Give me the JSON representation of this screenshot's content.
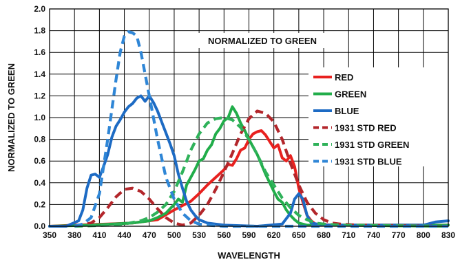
{
  "chart_data": {
    "type": "line",
    "title": "",
    "annotation": "NORMALIZED TO GREEN",
    "xlabel": "WAVELENGTH",
    "ylabel": "NORMALIZED TO GREEN",
    "xlim": [
      350,
      830
    ],
    "ylim": [
      0,
      2
    ],
    "x_ticks": [
      350,
      380,
      410,
      440,
      470,
      500,
      530,
      560,
      590,
      620,
      650,
      680,
      710,
      740,
      770,
      800,
      830
    ],
    "x_tick_labels": [
      "350",
      "380",
      "410",
      "440",
      "470",
      "500",
      "530",
      "560",
      "590",
      "620",
      "650",
      "680",
      "710",
      "740",
      "770",
      "800",
      "830"
    ],
    "y_ticks": [
      0,
      0.2,
      0.4,
      0.6,
      0.8,
      1.0,
      1.2,
      1.4,
      1.6,
      1.8,
      2.0
    ],
    "y_tick_labels": [
      "0.0",
      "0.2",
      "0.4",
      "0.6",
      "0.8",
      "1.0",
      "1.2",
      "1.4",
      "1.6",
      "1.8",
      "2.0"
    ],
    "grid": true,
    "legend_position": "right",
    "series": [
      {
        "name": "RED",
        "color": "#e8211f",
        "style": "solid",
        "points": [
          [
            350,
            0
          ],
          [
            380,
            0.01
          ],
          [
            420,
            0.02
          ],
          [
            450,
            0.03
          ],
          [
            480,
            0.06
          ],
          [
            500,
            0.15
          ],
          [
            510,
            0.19
          ],
          [
            520,
            0.23
          ],
          [
            530,
            0.3
          ],
          [
            540,
            0.38
          ],
          [
            550,
            0.45
          ],
          [
            560,
            0.52
          ],
          [
            565,
            0.57
          ],
          [
            570,
            0.56
          ],
          [
            575,
            0.62
          ],
          [
            580,
            0.7
          ],
          [
            585,
            0.72
          ],
          [
            590,
            0.8
          ],
          [
            595,
            0.85
          ],
          [
            600,
            0.87
          ],
          [
            605,
            0.88
          ],
          [
            610,
            0.84
          ],
          [
            615,
            0.78
          ],
          [
            620,
            0.72
          ],
          [
            625,
            0.75
          ],
          [
            630,
            0.63
          ],
          [
            635,
            0.6
          ],
          [
            640,
            0.65
          ],
          [
            645,
            0.55
          ],
          [
            650,
            0.35
          ],
          [
            655,
            0.22
          ],
          [
            660,
            0.1
          ],
          [
            665,
            0.05
          ],
          [
            670,
            0.02
          ],
          [
            690,
            0.01
          ],
          [
            830,
            0.01
          ]
        ]
      },
      {
        "name": "GREEN",
        "color": "#21ad4a",
        "style": "solid",
        "points": [
          [
            350,
            0
          ],
          [
            400,
            0.01
          ],
          [
            450,
            0.03
          ],
          [
            470,
            0.05
          ],
          [
            480,
            0.08
          ],
          [
            490,
            0.12
          ],
          [
            500,
            0.2
          ],
          [
            505,
            0.25
          ],
          [
            510,
            0.22
          ],
          [
            515,
            0.38
          ],
          [
            520,
            0.45
          ],
          [
            525,
            0.52
          ],
          [
            530,
            0.6
          ],
          [
            535,
            0.62
          ],
          [
            540,
            0.7
          ],
          [
            545,
            0.75
          ],
          [
            550,
            0.85
          ],
          [
            555,
            0.9
          ],
          [
            560,
            0.97
          ],
          [
            565,
            1.0
          ],
          [
            570,
            1.1
          ],
          [
            575,
            1.04
          ],
          [
            580,
            0.95
          ],
          [
            585,
            0.88
          ],
          [
            590,
            0.8
          ],
          [
            595,
            0.73
          ],
          [
            600,
            0.66
          ],
          [
            605,
            0.57
          ],
          [
            610,
            0.48
          ],
          [
            615,
            0.4
          ],
          [
            620,
            0.32
          ],
          [
            625,
            0.25
          ],
          [
            630,
            0.22
          ],
          [
            635,
            0.15
          ],
          [
            640,
            0.1
          ],
          [
            645,
            0.06
          ],
          [
            650,
            0.03
          ],
          [
            660,
            0.01
          ],
          [
            680,
            0.01
          ],
          [
            830,
            0.01
          ]
        ]
      },
      {
        "name": "BLUE",
        "color": "#1d6bc4",
        "style": "solid",
        "points": [
          [
            350,
            0
          ],
          [
            370,
            0
          ],
          [
            385,
            0.05
          ],
          [
            390,
            0.15
          ],
          [
            395,
            0.35
          ],
          [
            400,
            0.47
          ],
          [
            405,
            0.48
          ],
          [
            410,
            0.45
          ],
          [
            415,
            0.55
          ],
          [
            420,
            0.66
          ],
          [
            425,
            0.82
          ],
          [
            430,
            0.92
          ],
          [
            435,
            0.98
          ],
          [
            440,
            1.05
          ],
          [
            445,
            1.1
          ],
          [
            450,
            1.13
          ],
          [
            455,
            1.18
          ],
          [
            460,
            1.2
          ],
          [
            465,
            1.15
          ],
          [
            470,
            1.2
          ],
          [
            475,
            1.14
          ],
          [
            480,
            1.06
          ],
          [
            485,
            0.96
          ],
          [
            490,
            0.86
          ],
          [
            495,
            0.76
          ],
          [
            500,
            0.65
          ],
          [
            505,
            0.48
          ],
          [
            510,
            0.35
          ],
          [
            515,
            0.23
          ],
          [
            520,
            0.15
          ],
          [
            525,
            0.1
          ],
          [
            530,
            0.06
          ],
          [
            540,
            0.03
          ],
          [
            560,
            0.01
          ],
          [
            600,
            0.0
          ],
          [
            630,
            0.02
          ],
          [
            640,
            0.12
          ],
          [
            645,
            0.25
          ],
          [
            650,
            0.3
          ],
          [
            655,
            0.25
          ],
          [
            660,
            0.1
          ],
          [
            665,
            0.03
          ],
          [
            680,
            0.01
          ],
          [
            800,
            0.01
          ],
          [
            815,
            0.04
          ],
          [
            830,
            0.05
          ]
        ]
      },
      {
        "name": "1931 STD RED",
        "color": "#b3262b",
        "style": "dashed",
        "points": [
          [
            380,
            0.0
          ],
          [
            400,
            0.03
          ],
          [
            410,
            0.08
          ],
          [
            420,
            0.17
          ],
          [
            430,
            0.27
          ],
          [
            440,
            0.34
          ],
          [
            450,
            0.35
          ],
          [
            460,
            0.32
          ],
          [
            470,
            0.25
          ],
          [
            480,
            0.16
          ],
          [
            490,
            0.08
          ],
          [
            500,
            0.03
          ],
          [
            510,
            0.01
          ],
          [
            520,
            0.03
          ],
          [
            530,
            0.1
          ],
          [
            540,
            0.2
          ],
          [
            550,
            0.34
          ],
          [
            560,
            0.5
          ],
          [
            570,
            0.67
          ],
          [
            580,
            0.85
          ],
          [
            590,
            0.99
          ],
          [
            600,
            1.06
          ],
          [
            610,
            1.04
          ],
          [
            620,
            0.96
          ],
          [
            630,
            0.8
          ],
          [
            640,
            0.58
          ],
          [
            650,
            0.38
          ],
          [
            660,
            0.22
          ],
          [
            670,
            0.12
          ],
          [
            680,
            0.06
          ],
          [
            690,
            0.03
          ],
          [
            700,
            0.02
          ],
          [
            720,
            0.01
          ],
          [
            830,
            0.0
          ]
        ]
      },
      {
        "name": "1931 STD GREEN",
        "color": "#2fb25a",
        "style": "dashed",
        "points": [
          [
            380,
            0
          ],
          [
            420,
            0.01
          ],
          [
            440,
            0.02
          ],
          [
            460,
            0.05
          ],
          [
            470,
            0.08
          ],
          [
            480,
            0.13
          ],
          [
            490,
            0.2
          ],
          [
            500,
            0.32
          ],
          [
            510,
            0.5
          ],
          [
            520,
            0.7
          ],
          [
            530,
            0.85
          ],
          [
            540,
            0.95
          ],
          [
            550,
            0.99
          ],
          [
            560,
            1.0
          ],
          [
            570,
            0.98
          ],
          [
            580,
            0.91
          ],
          [
            590,
            0.8
          ],
          [
            600,
            0.66
          ],
          [
            610,
            0.5
          ],
          [
            620,
            0.38
          ],
          [
            630,
            0.26
          ],
          [
            640,
            0.17
          ],
          [
            650,
            0.1
          ],
          [
            660,
            0.06
          ],
          [
            670,
            0.03
          ],
          [
            680,
            0.02
          ],
          [
            700,
            0.01
          ],
          [
            830,
            0.0
          ]
        ]
      },
      {
        "name": "1931 STD BLUE",
        "color": "#2f86d6",
        "style": "dashed",
        "points": [
          [
            380,
            0.0
          ],
          [
            390,
            0.02
          ],
          [
            400,
            0.08
          ],
          [
            410,
            0.3
          ],
          [
            420,
            0.8
          ],
          [
            430,
            1.35
          ],
          [
            435,
            1.6
          ],
          [
            440,
            1.75
          ],
          [
            445,
            1.79
          ],
          [
            450,
            1.78
          ],
          [
            455,
            1.75
          ],
          [
            460,
            1.6
          ],
          [
            470,
            1.2
          ],
          [
            480,
            0.8
          ],
          [
            490,
            0.45
          ],
          [
            500,
            0.25
          ],
          [
            510,
            0.12
          ],
          [
            520,
            0.05
          ],
          [
            530,
            0.02
          ],
          [
            540,
            0.01
          ],
          [
            560,
            0.0
          ],
          [
            830,
            0.0
          ]
        ]
      }
    ]
  }
}
